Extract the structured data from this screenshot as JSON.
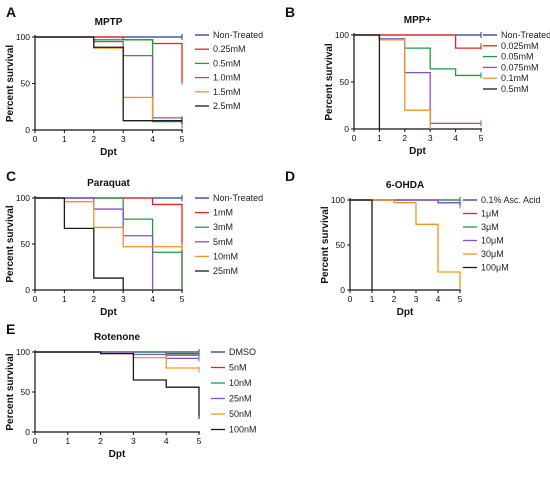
{
  "chart_data": [
    {
      "panel": "A",
      "title": "MPTP",
      "type": "line",
      "step": true,
      "xlabel": "Dpt",
      "ylabel": "Percent survival",
      "xlim": [
        0,
        5
      ],
      "ylim": [
        0,
        100
      ],
      "xticks": [
        0,
        1,
        2,
        3,
        4,
        5
      ],
      "yticks": [
        0,
        50,
        100
      ],
      "legend": "right",
      "series": [
        {
          "name": "Non-Treated",
          "color": "#1f3d99",
          "x": [
            0,
            5
          ],
          "y": [
            100,
            100
          ]
        },
        {
          "name": "0.25mM",
          "color": "#e8231f",
          "x": [
            0,
            3,
            4,
            5
          ],
          "y": [
            100,
            97,
            93,
            52
          ]
        },
        {
          "name": "0.5mM",
          "color": "#1a9e3f",
          "x": [
            0,
            2,
            4,
            5
          ],
          "y": [
            100,
            97,
            9,
            5
          ]
        },
        {
          "name": "1.0mM",
          "color": "#8b4fc9",
          "x": [
            0,
            2,
            3,
            4,
            5
          ],
          "y": [
            100,
            95,
            80,
            13,
            12
          ]
        },
        {
          "name": "1.5mM",
          "color": "#f39322",
          "x": [
            0,
            2,
            3,
            4,
            5
          ],
          "y": [
            100,
            88,
            35,
            10,
            8
          ]
        },
        {
          "name": "2.5mM",
          "color": "#1a1a1a",
          "x": [
            0,
            2,
            3,
            4
          ],
          "y": [
            100,
            89,
            10,
            10
          ]
        }
      ]
    },
    {
      "panel": "B",
      "title": "MPP+",
      "type": "line",
      "step": true,
      "xlabel": "Dpt",
      "ylabel": "Percent survival",
      "xlim": [
        0,
        5
      ],
      "ylim": [
        0,
        100
      ],
      "xticks": [
        0,
        1,
        2,
        3,
        4,
        5
      ],
      "yticks": [
        0,
        50,
        100
      ],
      "legend": "right",
      "series": [
        {
          "name": "Non-Treated",
          "color": "#1f3d99",
          "x": [
            0,
            5
          ],
          "y": [
            100,
            100
          ]
        },
        {
          "name": "0.025mM",
          "color": "#e8231f",
          "x": [
            0,
            4,
            5
          ],
          "y": [
            100,
            86,
            88
          ]
        },
        {
          "name": "0.05mM",
          "color": "#1a9e3f",
          "x": [
            0,
            1,
            2,
            3,
            4,
            5
          ],
          "y": [
            100,
            95,
            86,
            64,
            57,
            57
          ]
        },
        {
          "name": "0.075mM",
          "color": "#8b4fc9",
          "x": [
            0,
            1,
            2,
            3,
            5
          ],
          "y": [
            100,
            96,
            60,
            6,
            6
          ]
        },
        {
          "name": "0.1mM",
          "color": "#f39322",
          "x": [
            0,
            1,
            2,
            3
          ],
          "y": [
            100,
            95,
            20,
            0
          ]
        },
        {
          "name": "0.5mM",
          "color": "#1a1a1a",
          "x": [
            0,
            1
          ],
          "y": [
            100,
            0
          ]
        }
      ]
    },
    {
      "panel": "C",
      "title": "Paraquat",
      "type": "line",
      "step": true,
      "xlabel": "Dpt",
      "ylabel": "Percent survival",
      "xlim": [
        0,
        5
      ],
      "ylim": [
        0,
        100
      ],
      "xticks": [
        0,
        1,
        2,
        3,
        4,
        5
      ],
      "yticks": [
        0,
        50,
        100
      ],
      "legend": "right",
      "series": [
        {
          "name": "Non-Treated",
          "color": "#1f3d99",
          "x": [
            0,
            5
          ],
          "y": [
            100,
            100
          ]
        },
        {
          "name": "1mM",
          "color": "#e8231f",
          "x": [
            0,
            4,
            5
          ],
          "y": [
            100,
            93,
            0
          ]
        },
        {
          "name": "3mM",
          "color": "#1a9e3f",
          "x": [
            0,
            3,
            4,
            5
          ],
          "y": [
            100,
            77,
            41,
            0
          ]
        },
        {
          "name": "5mM",
          "color": "#8b4fc9",
          "x": [
            0,
            2,
            3,
            4
          ],
          "y": [
            100,
            88,
            59,
            0
          ]
        },
        {
          "name": "10mM",
          "color": "#f39322",
          "x": [
            0,
            1,
            2,
            3,
            4
          ],
          "y": [
            100,
            96,
            68,
            47,
            47
          ]
        },
        {
          "name": "25mM",
          "color": "#1a1a1a",
          "x": [
            0,
            1,
            2,
            3
          ],
          "y": [
            100,
            67,
            13,
            0
          ]
        }
      ]
    },
    {
      "panel": "D",
      "title": "6-OHDA",
      "type": "line",
      "step": true,
      "xlabel": "Dpt",
      "ylabel": "Percent survival",
      "xlim": [
        0,
        5
      ],
      "ylim": [
        0,
        100
      ],
      "xticks": [
        0,
        1,
        2,
        3,
        4,
        5
      ],
      "yticks": [
        0,
        50,
        100
      ],
      "legend": "right",
      "series": [
        {
          "name": "0.1% Asc. Acid",
          "color": "#1f3d99",
          "x": [
            0,
            5
          ],
          "y": [
            100,
            100
          ]
        },
        {
          "name": "1μM",
          "color": "#e8231f",
          "x": [
            0,
            4,
            5
          ],
          "y": [
            100,
            97,
            95
          ]
        },
        {
          "name": "3μM",
          "color": "#1a9e3f",
          "x": [
            0,
            5
          ],
          "y": [
            100,
            98
          ]
        },
        {
          "name": "10μM",
          "color": "#8b4fc9",
          "x": [
            0,
            4,
            5
          ],
          "y": [
            100,
            97,
            94
          ]
        },
        {
          "name": "30μM",
          "color": "#f39322",
          "x": [
            0,
            2,
            3,
            4,
            5
          ],
          "y": [
            100,
            97,
            73,
            20,
            0
          ]
        },
        {
          "name": "100μM",
          "color": "#1a1a1a",
          "x": [
            0,
            1
          ],
          "y": [
            100,
            0
          ]
        }
      ]
    },
    {
      "panel": "E",
      "title": "Rotenone",
      "type": "line",
      "step": true,
      "xlabel": "Dpt",
      "ylabel": "Percent survival",
      "xlim": [
        0,
        5
      ],
      "ylim": [
        0,
        100
      ],
      "xticks": [
        0,
        1,
        2,
        3,
        4,
        5
      ],
      "yticks": [
        0,
        50,
        100
      ],
      "legend": "right",
      "series": [
        {
          "name": "DMSO",
          "color": "#1f3d99",
          "x": [
            0,
            5
          ],
          "y": [
            100,
            100
          ]
        },
        {
          "name": "5nM",
          "color": "#e8231f",
          "x": [
            0,
            4,
            5
          ],
          "y": [
            100,
            98,
            97
          ]
        },
        {
          "name": "10nM",
          "color": "#1a9e3f",
          "x": [
            0,
            4,
            5
          ],
          "y": [
            100,
            96,
            95
          ]
        },
        {
          "name": "25nM",
          "color": "#8b4fc9",
          "x": [
            0,
            3,
            4,
            5
          ],
          "y": [
            100,
            97,
            92,
            92
          ]
        },
        {
          "name": "50nM",
          "color": "#f39322",
          "x": [
            0,
            2,
            3,
            4,
            5
          ],
          "y": [
            100,
            98,
            93,
            80,
            78
          ]
        },
        {
          "name": "100nM",
          "color": "#1a1a1a",
          "x": [
            0,
            2,
            3,
            4,
            5
          ],
          "y": [
            100,
            98,
            65,
            56,
            20
          ]
        }
      ]
    }
  ]
}
